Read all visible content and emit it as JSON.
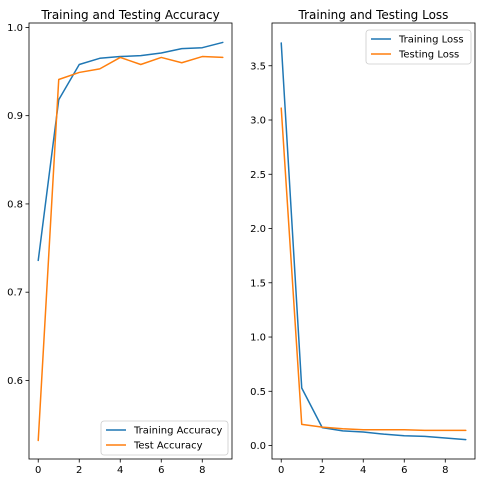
{
  "chart_data": [
    {
      "type": "line",
      "title": "Training and Testing Accuracy",
      "xlabel": "",
      "ylabel": "",
      "xlim": [
        -0.45,
        9.45
      ],
      "ylim": [
        0.511,
        1.005
      ],
      "xticks": [
        0,
        2,
        4,
        6,
        8
      ],
      "xtick_labels": [
        "0",
        "2",
        "4",
        "6",
        "8"
      ],
      "yticks": [
        0.6,
        0.7,
        0.8,
        0.9,
        1.0
      ],
      "ytick_labels": [
        "0.6",
        "0.7",
        "0.8",
        "0.9",
        "1.0"
      ],
      "grid": false,
      "legend_position": "lower-right",
      "x": [
        0,
        1,
        2,
        3,
        4,
        5,
        6,
        7,
        8,
        9
      ],
      "series": [
        {
          "name": "Training Accuracy",
          "color": "#1f77b4",
          "values": [
            0.736,
            0.918,
            0.958,
            0.965,
            0.967,
            0.968,
            0.971,
            0.976,
            0.977,
            0.983
          ]
        },
        {
          "name": "Test Accuracy",
          "color": "#ff7f0e",
          "values": [
            0.532,
            0.941,
            0.949,
            0.953,
            0.966,
            0.958,
            0.966,
            0.96,
            0.967,
            0.966
          ]
        }
      ]
    },
    {
      "type": "line",
      "title": "Training and Testing Loss",
      "xlabel": "",
      "ylabel": "",
      "xlim": [
        -0.45,
        9.45
      ],
      "ylim": [
        -0.124,
        3.894
      ],
      "xticks": [
        0,
        2,
        4,
        6,
        8
      ],
      "xtick_labels": [
        "0",
        "2",
        "4",
        "6",
        "8"
      ],
      "yticks": [
        0.0,
        0.5,
        1.0,
        1.5,
        2.0,
        2.5,
        3.0,
        3.5
      ],
      "ytick_labels": [
        "0.0",
        "0.5",
        "1.0",
        "1.5",
        "2.0",
        "2.5",
        "3.0",
        "3.5"
      ],
      "grid": false,
      "legend_position": "top-right",
      "x": [
        0,
        1,
        2,
        3,
        4,
        5,
        6,
        7,
        8,
        9
      ],
      "series": [
        {
          "name": "Training Loss",
          "color": "#1f77b4",
          "values": [
            3.71,
            0.53,
            0.165,
            0.135,
            0.125,
            0.105,
            0.09,
            0.085,
            0.07,
            0.055
          ]
        },
        {
          "name": "Testing Loss",
          "color": "#ff7f0e",
          "values": [
            3.11,
            0.195,
            0.17,
            0.155,
            0.145,
            0.145,
            0.145,
            0.14,
            0.14,
            0.14
          ]
        }
      ]
    }
  ]
}
